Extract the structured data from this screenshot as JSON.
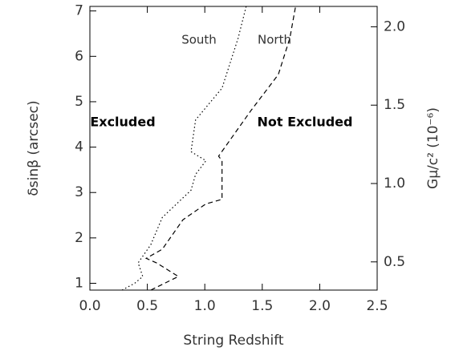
{
  "chart_data": {
    "type": "line",
    "xlabel": "String Redshift",
    "ylabel": "δsinβ (arcsec)",
    "y2label": "Gμ/c² (10⁻⁶)",
    "xlim": [
      0,
      2.5
    ],
    "xticks": [
      {
        "value": 0,
        "label": "0.0"
      },
      0.5,
      {
        "value": 1,
        "label": "1.0"
      },
      1.5,
      {
        "value": 2,
        "label": "2.0"
      },
      2.5
    ],
    "ylim": [
      0.85,
      7.1
    ],
    "yticks": [
      1,
      2,
      3,
      4,
      5,
      6,
      7
    ],
    "y2lim": [
      0.32,
      2.13
    ],
    "y2ticks": [
      0.5,
      {
        "value": 1,
        "label": "1.0"
      },
      1.5,
      {
        "value": 2,
        "label": "2.0"
      }
    ],
    "series": [
      {
        "name": "South",
        "color": "#000000",
        "dash": "dotted",
        "x": [
          0.28,
          0.39,
          0.46,
          0.42,
          0.53,
          0.63,
          0.88,
          0.92,
          1.01,
          0.88,
          0.92,
          1.15,
          1.29,
          1.36
        ],
        "values": [
          0.85,
          1.0,
          1.15,
          1.45,
          1.85,
          2.45,
          3.05,
          3.4,
          3.7,
          3.9,
          4.6,
          5.3,
          6.4,
          7.1
        ]
      },
      {
        "name": "North",
        "color": "#000000",
        "dash": "dashed",
        "x": [
          0.53,
          0.77,
          0.58,
          0.49,
          0.63,
          0.81,
          1.01,
          1.15,
          1.15,
          1.12,
          1.4,
          1.64,
          1.74,
          1.79
        ],
        "values": [
          0.85,
          1.15,
          1.45,
          1.55,
          1.75,
          2.4,
          2.75,
          2.85,
          3.7,
          3.8,
          4.8,
          5.6,
          6.4,
          7.1
        ]
      }
    ],
    "annotations": [
      "Excluded",
      "Not Excluded"
    ]
  }
}
